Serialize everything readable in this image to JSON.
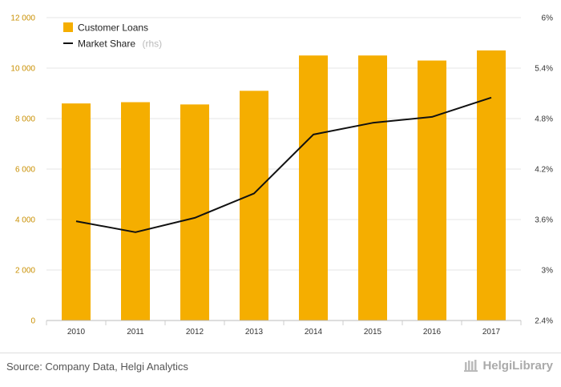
{
  "colors": {
    "bars": "#f5ae00",
    "line": "#111111",
    "left_axis": "#c98f00",
    "grid": "#e6e6e6"
  },
  "legend": {
    "bars_label": "Customer Loans",
    "line_label": "Market Share",
    "line_suffix": "(rhs)"
  },
  "footer": {
    "source": "Source: Company Data, Helgi Analytics",
    "brand": "HelgiLibrary",
    "brand_icon": "library-logo-icon"
  },
  "chart_data": {
    "type": "bar",
    "categories": [
      "2010",
      "2011",
      "2012",
      "2013",
      "2014",
      "2015",
      "2016",
      "2017"
    ],
    "series": [
      {
        "name": "Customer Loans",
        "type": "bar",
        "axis": "left",
        "values": [
          8600,
          8650,
          8560,
          9100,
          10500,
          10500,
          10300,
          10700
        ]
      },
      {
        "name": "Market Share",
        "type": "line",
        "axis": "right",
        "values": [
          3.58,
          3.45,
          3.62,
          3.91,
          4.61,
          4.75,
          4.82,
          5.05
        ]
      }
    ],
    "y_left": {
      "min": 0,
      "max": 12000,
      "ticks": [
        0,
        2000,
        4000,
        6000,
        8000,
        10000,
        12000
      ],
      "tick_labels": [
        "0",
        "2 000",
        "4 000",
        "6 000",
        "8 000",
        "10 000",
        "12 000"
      ]
    },
    "y_right": {
      "min": 2.4,
      "max": 6.0,
      "ticks": [
        2.4,
        3.0,
        3.6,
        4.2,
        4.8,
        5.4,
        6.0
      ],
      "tick_labels": [
        "2.4%",
        "3%",
        "3.6%",
        "4.2%",
        "4.8%",
        "5.4%",
        "6%"
      ]
    },
    "grid": true,
    "legend_position": "top-left"
  }
}
